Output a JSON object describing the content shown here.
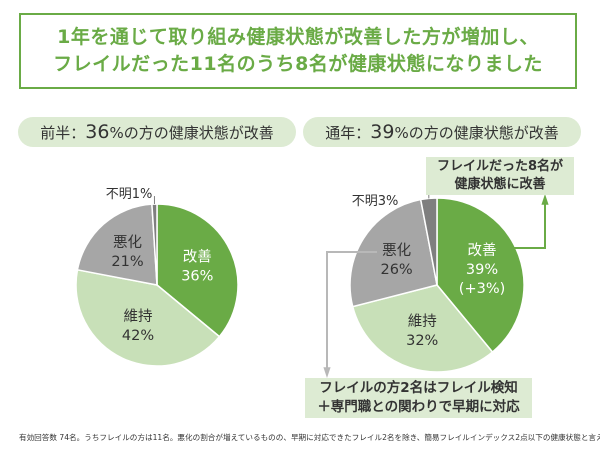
{
  "title": {
    "line1": "1年を通じて取り組み健康状態が改善した方が増加し、",
    "line2": "フレイルだった11名のうち8名が健康状態になりました"
  },
  "left_header": {
    "prefix": "前半：",
    "pct": "36",
    "suffix": "%の方の健康状態が改善"
  },
  "right_header": {
    "prefix": "通年：",
    "pct": "39",
    "suffix": "%の方の健康状態が改善"
  },
  "callout_top": {
    "line1": "フレイルだった8名が",
    "line2": "健康状態に改善"
  },
  "callout_bottom": {
    "line1": "フレイルの方2名はフレイル検知",
    "line2": "＋専門職との関わりで早期に対応"
  },
  "footnote": "有効回答数 74名。うちフレイルの方は11名。悪化の割合が増えているものの、早期に対応できたフレイル2名を除き、簡易フレイルインデックス2点以下の健康状態と言える",
  "colors": {
    "improve": "#6aab46",
    "maintain": "#c8e0b8",
    "worsen": "#a6a6a6",
    "unknown": "#7f7f7f",
    "accent": "#6aab46"
  },
  "chart_data": [
    {
      "type": "pie",
      "title": "前半",
      "slices": [
        {
          "name": "改善",
          "value": 36,
          "label": "36%"
        },
        {
          "name": "維持",
          "value": 42,
          "label": "42%"
        },
        {
          "name": "悪化",
          "value": 21,
          "label": "21%"
        },
        {
          "name": "不明",
          "value": 1,
          "label": "1%"
        }
      ]
    },
    {
      "type": "pie",
      "title": "通年",
      "slices": [
        {
          "name": "改善",
          "value": 39,
          "label": "39%",
          "note": "(+3%)"
        },
        {
          "name": "維持",
          "value": 32,
          "label": "32%"
        },
        {
          "name": "悪化",
          "value": 26,
          "label": "26%"
        },
        {
          "name": "不明",
          "value": 3,
          "label": "3%"
        }
      ]
    }
  ]
}
